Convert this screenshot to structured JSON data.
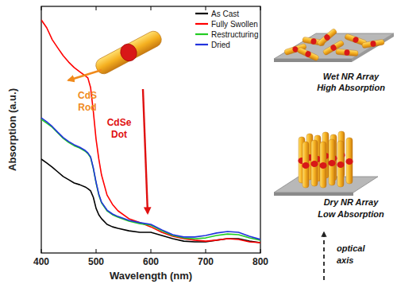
{
  "chart_data": {
    "type": "line",
    "x_label": "Wavelength (nm)",
    "y_label": "Absorption (a.u.)",
    "x": [
      400,
      410,
      420,
      430,
      440,
      450,
      460,
      470,
      480,
      485,
      490,
      495,
      500,
      505,
      510,
      520,
      530,
      540,
      560,
      580,
      600,
      620,
      640,
      660,
      680,
      700,
      720,
      740,
      760,
      780,
      800
    ],
    "series": [
      {
        "name": "As Cast",
        "color": "#000000",
        "values": [
          38.1,
          36.5,
          34.8,
          32.9,
          31.0,
          29.7,
          28.4,
          27.7,
          26.8,
          26.1,
          25.2,
          22.6,
          18.1,
          15.5,
          13.9,
          11.6,
          10.6,
          10.0,
          9.0,
          8.4,
          8.4,
          7.1,
          5.8,
          4.8,
          4.5,
          4.5,
          5.2,
          5.8,
          5.8,
          4.8,
          4.2
        ]
      },
      {
        "name": "Fully Swollen",
        "color": "#ff0000",
        "values": [
          94.5,
          91.3,
          86.5,
          83.2,
          80.0,
          77.4,
          75.2,
          73.5,
          71.9,
          71.0,
          67.1,
          57.4,
          46.1,
          38.1,
          31.6,
          23.5,
          19.7,
          17.1,
          13.9,
          12.3,
          10.6,
          8.4,
          6.8,
          5.8,
          5.2,
          4.8,
          5.2,
          5.8,
          5.5,
          4.5,
          4.2
        ]
      },
      {
        "name": "Restructuring",
        "color": "#22cc22",
        "values": [
          54.2,
          52.6,
          51.0,
          48.7,
          46.5,
          44.8,
          43.5,
          42.6,
          41.3,
          40.3,
          38.7,
          34.2,
          28.4,
          23.5,
          20.3,
          17.1,
          15.5,
          14.5,
          12.9,
          11.9,
          11.3,
          9.0,
          7.1,
          6.1,
          5.8,
          6.1,
          7.1,
          7.7,
          7.4,
          6.1,
          5.2
        ]
      },
      {
        "name": "Dried",
        "color": "#2233dd",
        "values": [
          54.8,
          53.2,
          51.3,
          49.0,
          46.8,
          45.2,
          43.9,
          42.9,
          41.6,
          40.6,
          39.0,
          34.5,
          28.7,
          23.9,
          20.6,
          17.4,
          15.8,
          14.8,
          13.2,
          12.3,
          11.6,
          9.4,
          7.4,
          6.5,
          6.5,
          7.1,
          8.1,
          8.7,
          8.4,
          6.8,
          5.5
        ]
      }
    ],
    "xlim": [
      400,
      800
    ],
    "xticks": [
      400,
      500,
      600,
      700,
      800
    ],
    "ylim": [
      0,
      100
    ],
    "tick_labels": "x",
    "legend": "upper right",
    "grid": false,
    "annotations": [
      "CdS Rod",
      "CdSe Dot"
    ]
  },
  "diagram": {
    "labels": [
      "Wet NR Array",
      "High Absorption",
      "Dry NR Array",
      "Low Absorption",
      "optical axis"
    ]
  }
}
